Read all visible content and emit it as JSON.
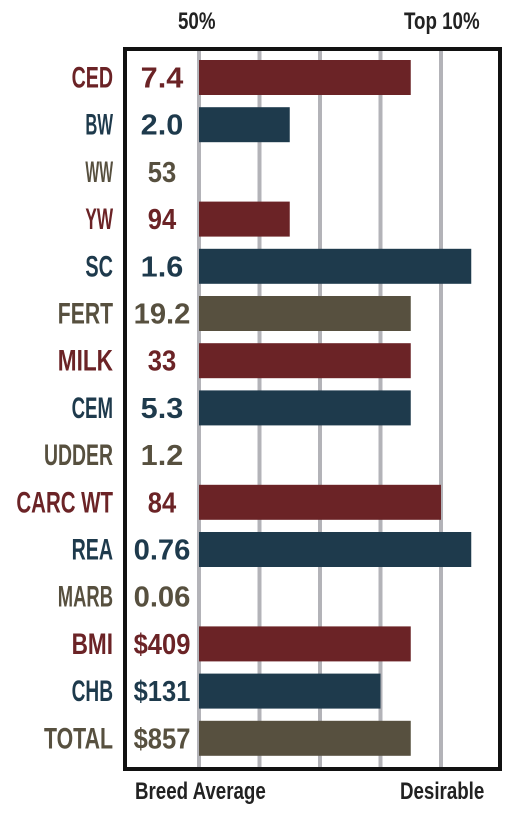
{
  "header": {
    "left": "50%",
    "right": "Top 10%"
  },
  "footer": {
    "left": "Breed Average",
    "right": "Desirable"
  },
  "chart_data": {
    "type": "bar",
    "orientation": "horizontal",
    "x_scale": "0 = Breed Average, 4 = Desirable; gridlines at 0,1,2,3,4",
    "xlim": [
      0,
      4.5
    ],
    "grid": true,
    "colors": {
      "red": "#6b2326",
      "blue": "#1e3a4c",
      "brown": "#57503f"
    },
    "rows": [
      {
        "trait": "CED",
        "value": "7.4",
        "bar": 3.5,
        "color": "red"
      },
      {
        "trait": "BW",
        "value": "2.0",
        "bar": 1.5,
        "color": "blue"
      },
      {
        "trait": "WW",
        "value": "53",
        "bar": 0,
        "color": "brown"
      },
      {
        "trait": "YW",
        "value": "94",
        "bar": 1.5,
        "color": "red"
      },
      {
        "trait": "SC",
        "value": "1.6",
        "bar": 4.5,
        "color": "blue"
      },
      {
        "trait": "FERT",
        "value": "19.2",
        "bar": 3.5,
        "color": "brown"
      },
      {
        "trait": "MILK",
        "value": "33",
        "bar": 3.5,
        "color": "red"
      },
      {
        "trait": "CEM",
        "value": "5.3",
        "bar": 3.5,
        "color": "blue"
      },
      {
        "trait": "UDDER",
        "value": "1.2",
        "bar": 0,
        "color": "brown"
      },
      {
        "trait": "CARC WT",
        "value": "84",
        "bar": 4.0,
        "color": "red"
      },
      {
        "trait": "REA",
        "value": "0.76",
        "bar": 4.5,
        "color": "blue"
      },
      {
        "trait": "MARB",
        "value": "0.06",
        "bar": 0,
        "color": "brown"
      },
      {
        "trait": "BMI",
        "value": "$409",
        "bar": 3.5,
        "color": "red"
      },
      {
        "trait": "CHB",
        "value": "$131",
        "bar": 3.0,
        "color": "blue"
      },
      {
        "trait": "TOTAL",
        "value": "$857",
        "bar": 3.5,
        "color": "brown"
      }
    ]
  }
}
